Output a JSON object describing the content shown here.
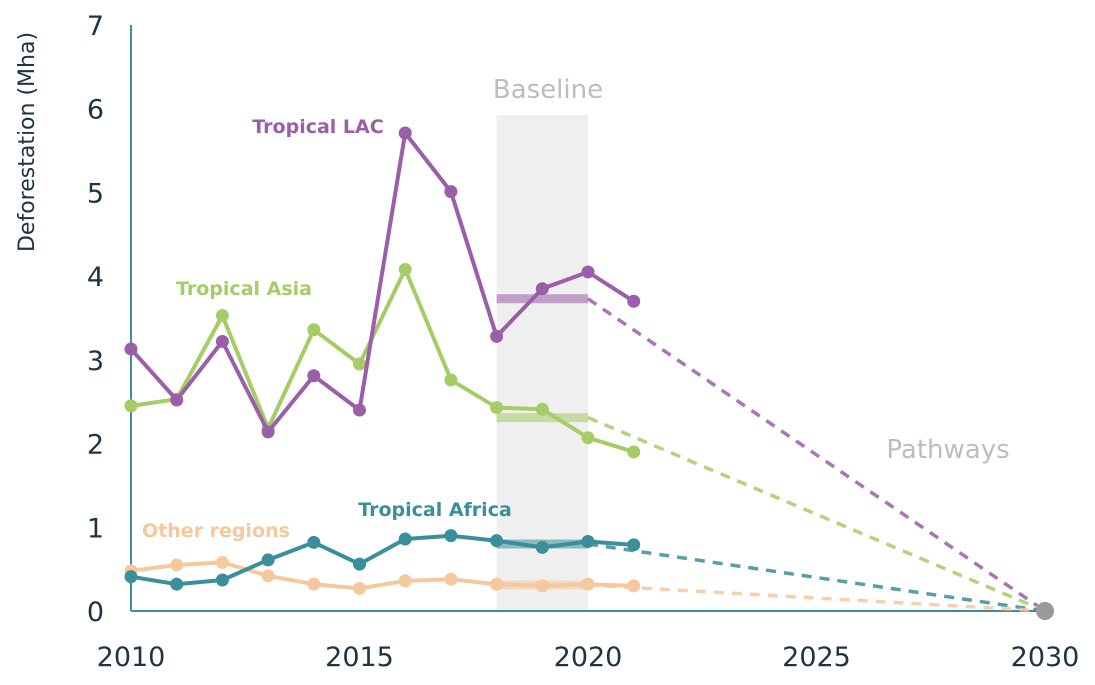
{
  "chart_data": {
    "type": "line",
    "ylabel": "Deforestation (Mha)",
    "xlim": [
      2010,
      2030
    ],
    "ylim": [
      0,
      7
    ],
    "x_ticks": [
      "2010",
      "2015",
      "2020",
      "2025",
      "2030"
    ],
    "y_ticks": [
      "0",
      "1",
      "2",
      "3",
      "4",
      "5",
      "6",
      "7"
    ],
    "x": [
      2010,
      2011,
      2012,
      2013,
      2014,
      2015,
      2016,
      2017,
      2018,
      2019,
      2020,
      2021
    ],
    "series": [
      {
        "name": "Tropical LAC",
        "color": "#9b5ea8",
        "values": [
          3.13,
          2.52,
          3.22,
          2.14,
          2.81,
          2.4,
          5.71,
          5.01,
          3.28,
          3.85,
          4.05,
          3.7
        ],
        "baseline": 3.73,
        "pathway_end": 0
      },
      {
        "name": "Tropical Asia",
        "color": "#a6cc66",
        "values": [
          2.45,
          2.53,
          3.53,
          2.18,
          3.36,
          2.95,
          4.08,
          2.76,
          2.43,
          2.41,
          2.07,
          1.9
        ],
        "baseline": 2.31,
        "pathway_end": 0
      },
      {
        "name": "Tropical Africa",
        "color": "#3a8f9a",
        "values": [
          0.41,
          0.32,
          0.37,
          0.61,
          0.82,
          0.56,
          0.86,
          0.9,
          0.84,
          0.76,
          0.83,
          0.79
        ],
        "baseline": 0.8,
        "pathway_end": 0
      },
      {
        "name": "Other regions",
        "color": "#f5c89e",
        "values": [
          0.48,
          0.55,
          0.58,
          0.42,
          0.32,
          0.27,
          0.36,
          0.38,
          0.32,
          0.3,
          0.32,
          0.3
        ],
        "baseline": 0.31,
        "pathway_end": 0
      }
    ],
    "baseline_period": [
      2018,
      2020
    ],
    "annotations": {
      "baseline": "Baseline",
      "pathways": "Pathways"
    },
    "end_point": {
      "x": 2030,
      "y": 0
    }
  }
}
